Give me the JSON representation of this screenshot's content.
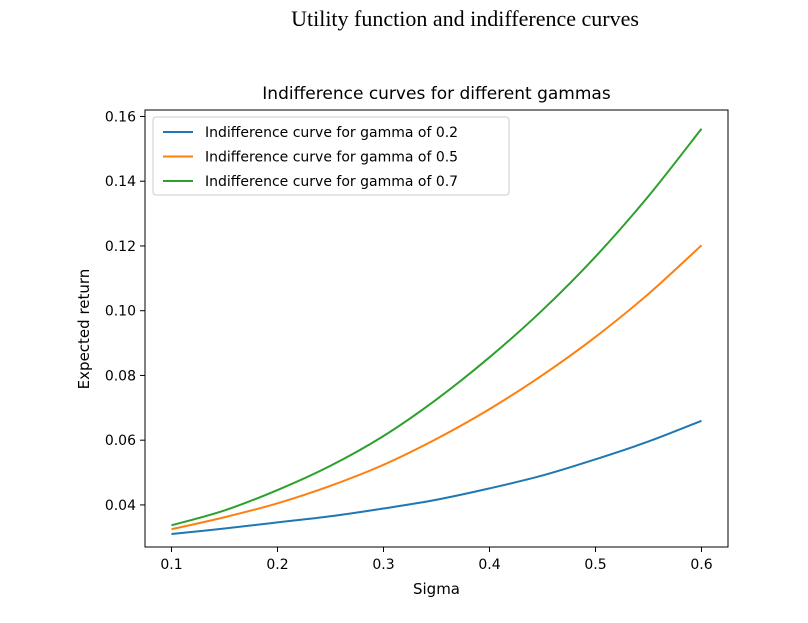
{
  "page": {
    "heading": "Utility function and indifference curves"
  },
  "chart_data": {
    "type": "line",
    "title": "Indifference curves for different gammas",
    "xlabel": "Sigma",
    "ylabel": "Expected return",
    "xlim": [
      0.075,
      0.625
    ],
    "ylim": [
      0.027,
      0.162
    ],
    "xticks": [
      0.1,
      0.2,
      0.3,
      0.4,
      0.5,
      0.6
    ],
    "xtick_labels": [
      "0.1",
      "0.2",
      "0.3",
      "0.4",
      "0.5",
      "0.6"
    ],
    "yticks": [
      0.04,
      0.06,
      0.08,
      0.1,
      0.12,
      0.14,
      0.16
    ],
    "ytick_labels": [
      "0.04",
      "0.06",
      "0.08",
      "0.10",
      "0.12",
      "0.14",
      "0.16"
    ],
    "grid": false,
    "legend_position": "top-left",
    "x": [
      0.1,
      0.15,
      0.2,
      0.25,
      0.3,
      0.35,
      0.4,
      0.45,
      0.5,
      0.55,
      0.6
    ],
    "series": [
      {
        "name": "Indifference curve for gamma of 0.2",
        "color": "#1f77b4",
        "values": [
          0.031,
          0.0327,
          0.0346,
          0.0365,
          0.0389,
          0.0416,
          0.0451,
          0.0491,
          0.0541,
          0.0596,
          0.066
        ]
      },
      {
        "name": "Indifference curve for gamma of 0.5",
        "color": "#ff7f0e",
        "values": [
          0.0325,
          0.0362,
          0.0405,
          0.0459,
          0.0524,
          0.0604,
          0.0696,
          0.0801,
          0.0919,
          0.1052,
          0.1202
        ]
      },
      {
        "name": "Indifference curve for gamma of 0.7",
        "color": "#2ca02c",
        "values": [
          0.0337,
          0.0383,
          0.0446,
          0.0521,
          0.0613,
          0.0726,
          0.0856,
          0.1002,
          0.1167,
          0.1354,
          0.1562
        ]
      }
    ]
  }
}
